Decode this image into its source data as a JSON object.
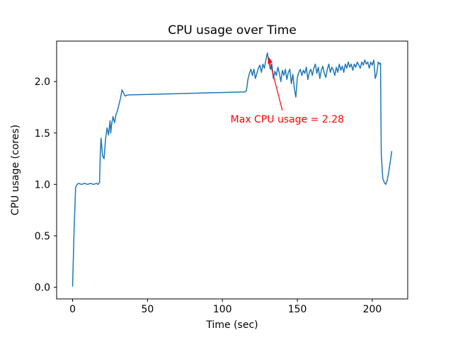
{
  "chart_data": {
    "type": "line",
    "title": "CPU usage over Time",
    "xlabel": "Time (sec)",
    "ylabel": "CPU usage (cores)",
    "xlim": [
      -10.65,
      223.65
    ],
    "ylim": [
      -0.114,
      2.394
    ],
    "xticks": [
      0,
      50,
      100,
      150,
      200
    ],
    "xtick_labels": [
      "0",
      "50",
      "100",
      "150",
      "200"
    ],
    "yticks": [
      0.0,
      0.5,
      1.0,
      1.5,
      2.0
    ],
    "ytick_labels": [
      "0.0",
      "0.5",
      "1.0",
      "1.5",
      "2.0"
    ],
    "grid": false,
    "legend": "none",
    "line_color": "#1f77b4",
    "line_width": 1.5,
    "background_color": "#ffffff",
    "max_value": 2.28,
    "annotation": {
      "text": "Max CPU usage = 2.28",
      "color": "#ff0000",
      "text_xy": [
        105.4,
        1.6
      ],
      "arrow_tail": [
        140.0,
        1.72
      ],
      "arrow_tip": [
        130.8,
        2.24
      ]
    },
    "points": [
      [
        0,
        0.01
      ],
      [
        1,
        0.55
      ],
      [
        2,
        0.97
      ],
      [
        3,
        1.0
      ],
      [
        4,
        1.01
      ],
      [
        6,
        1.0
      ],
      [
        8,
        1.01
      ],
      [
        10,
        1.0
      ],
      [
        12,
        1.01
      ],
      [
        14,
        1.0
      ],
      [
        16,
        1.01
      ],
      [
        17,
        1.0
      ],
      [
        18,
        1.02
      ],
      [
        18.5,
        1.3
      ],
      [
        19,
        1.45
      ],
      [
        20,
        1.28
      ],
      [
        21,
        1.25
      ],
      [
        22,
        1.44
      ],
      [
        23,
        1.55
      ],
      [
        24,
        1.48
      ],
      [
        25,
        1.62
      ],
      [
        25.5,
        1.5
      ],
      [
        26,
        1.58
      ],
      [
        27,
        1.66
      ],
      [
        28,
        1.6
      ],
      [
        29,
        1.68
      ],
      [
        30,
        1.72
      ],
      [
        31,
        1.78
      ],
      [
        32,
        1.84
      ],
      [
        33,
        1.92
      ],
      [
        34,
        1.89
      ],
      [
        35,
        1.86
      ],
      [
        37,
        1.87
      ],
      [
        115,
        1.9
      ],
      [
        116,
        1.91
      ],
      [
        117,
        2.02
      ],
      [
        118,
        2.08
      ],
      [
        119,
        2.12
      ],
      [
        120,
        2.06
      ],
      [
        121,
        2.12
      ],
      [
        122,
        2.03
      ],
      [
        123,
        2.08
      ],
      [
        124,
        2.13
      ],
      [
        125,
        2.16
      ],
      [
        126,
        2.09
      ],
      [
        127,
        2.17
      ],
      [
        128,
        2.13
      ],
      [
        129,
        2.21
      ],
      [
        130,
        2.28
      ],
      [
        131,
        2.18
      ],
      [
        132,
        2.12
      ],
      [
        133,
        2.17
      ],
      [
        134,
        2.03
      ],
      [
        135,
        2.1
      ],
      [
        136,
        2.06
      ],
      [
        137,
        2.14
      ],
      [
        138,
        2.08
      ],
      [
        139,
        2.0
      ],
      [
        140,
        2.11
      ],
      [
        141,
        2.06
      ],
      [
        142,
        2.12
      ],
      [
        143,
        2.02
      ],
      [
        144,
        2.09
      ],
      [
        145,
        2.12
      ],
      [
        146,
        1.98
      ],
      [
        147,
        2.07
      ],
      [
        148,
        1.93
      ],
      [
        149,
        1.85
      ],
      [
        150,
        2.04
      ],
      [
        151,
        2.09
      ],
      [
        152,
        2.12
      ],
      [
        153,
        2.06
      ],
      [
        154,
        2.11
      ],
      [
        155,
        2.08
      ],
      [
        156,
        2.14
      ],
      [
        157,
        2.02
      ],
      [
        158,
        2.09
      ],
      [
        159,
        2.12
      ],
      [
        160,
        2.06
      ],
      [
        161,
        2.13
      ],
      [
        162,
        2.17
      ],
      [
        163,
        2.08
      ],
      [
        164,
        2.14
      ],
      [
        165,
        2.03
      ],
      [
        166,
        2.11
      ],
      [
        167,
        2.15
      ],
      [
        168,
        2.08
      ],
      [
        169,
        2.04
      ],
      [
        170,
        2.12
      ],
      [
        171,
        2.17
      ],
      [
        172,
        2.09
      ],
      [
        173,
        2.14
      ],
      [
        174,
        2.11
      ],
      [
        175,
        2.06
      ],
      [
        176,
        2.14
      ],
      [
        177,
        2.09
      ],
      [
        178,
        2.17
      ],
      [
        179,
        2.11
      ],
      [
        180,
        2.15
      ],
      [
        181,
        2.09
      ],
      [
        182,
        2.17
      ],
      [
        183,
        2.13
      ],
      [
        184,
        2.19
      ],
      [
        185,
        2.14
      ],
      [
        186,
        2.17
      ],
      [
        187,
        2.11
      ],
      [
        188,
        2.17
      ],
      [
        189,
        2.14
      ],
      [
        190,
        2.19
      ],
      [
        191,
        2.16
      ],
      [
        192,
        2.13
      ],
      [
        193,
        2.19
      ],
      [
        194,
        2.16
      ],
      [
        195,
        2.21
      ],
      [
        196,
        2.17
      ],
      [
        197,
        2.19
      ],
      [
        198,
        2.13
      ],
      [
        199,
        2.19
      ],
      [
        200,
        2.16
      ],
      [
        201,
        2.21
      ],
      [
        202,
        2.03
      ],
      [
        203,
        2.08
      ],
      [
        204,
        2.19
      ],
      [
        205,
        2.17
      ],
      [
        205.5,
        2.18
      ],
      [
        206,
        1.3
      ],
      [
        207,
        1.06
      ],
      [
        208,
        1.02
      ],
      [
        209,
        1.0
      ],
      [
        210,
        1.04
      ],
      [
        211,
        1.12
      ],
      [
        212,
        1.22
      ],
      [
        213,
        1.32
      ]
    ]
  }
}
